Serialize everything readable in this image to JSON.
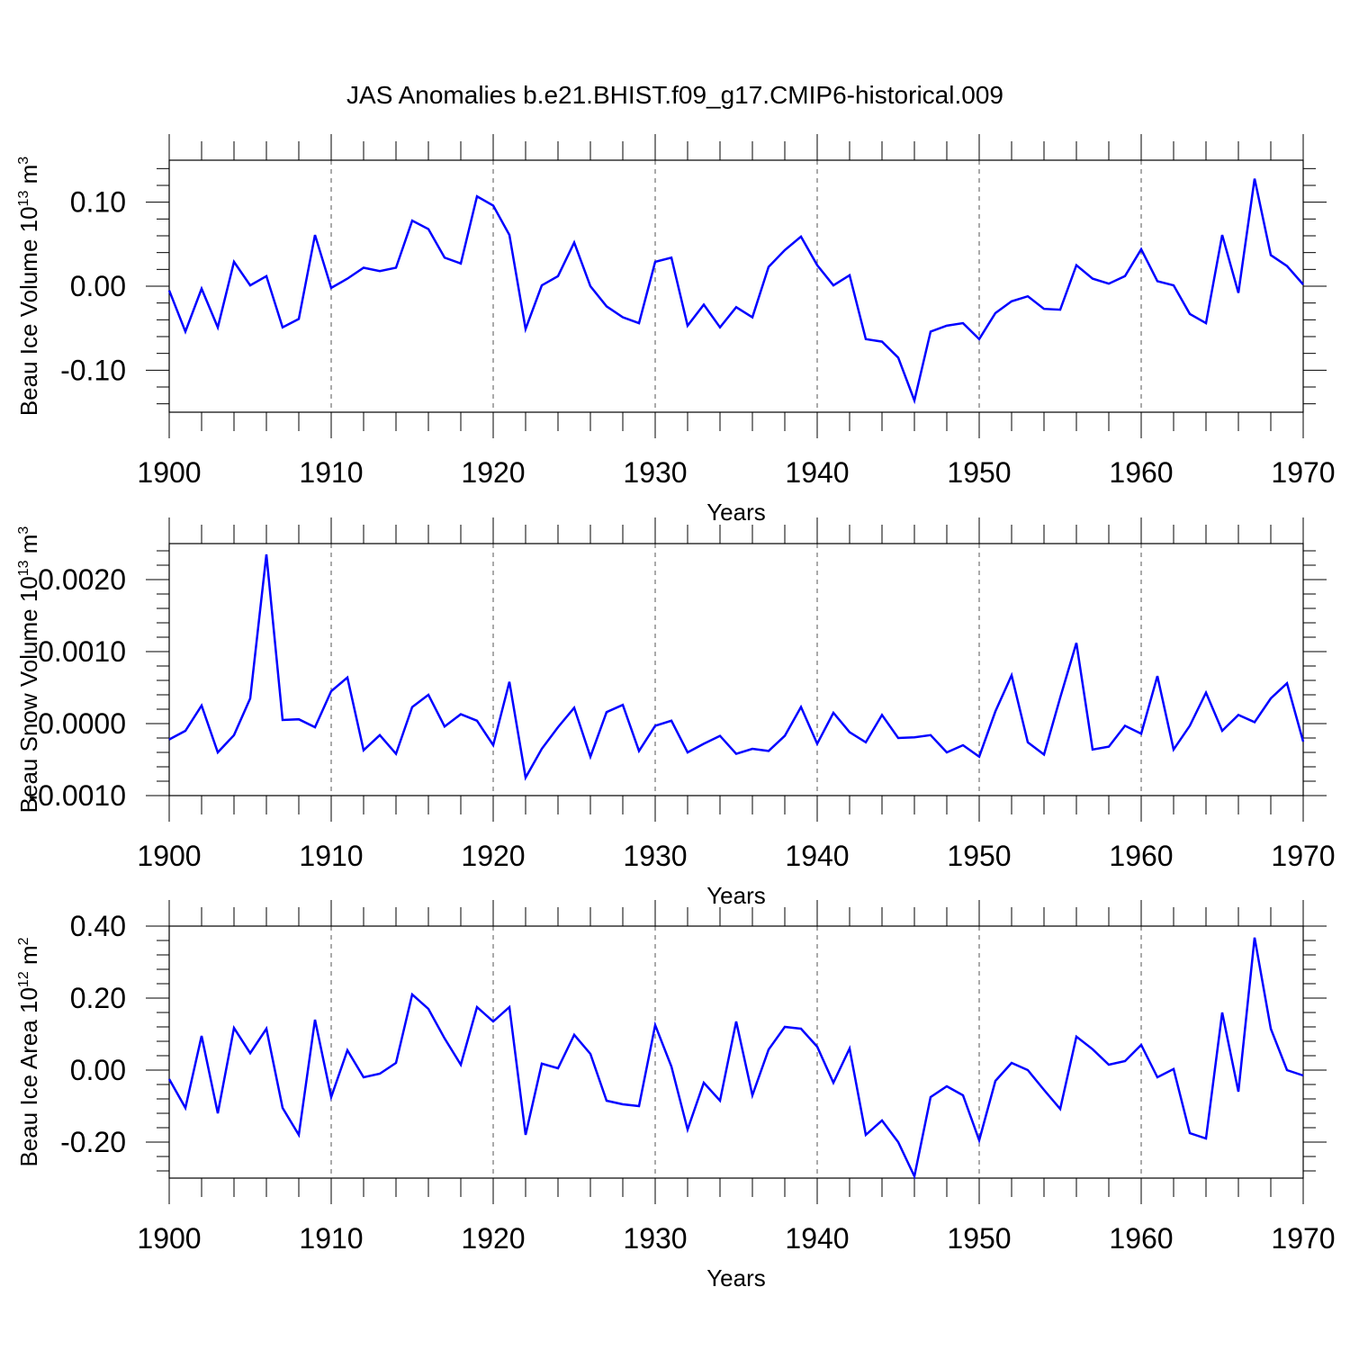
{
  "title": "JAS Anomalies b.e21.BHIST.f09_g17.CMIP6-historical.009",
  "colors": {
    "line": "#0000ff",
    "axis": "#000000",
    "grid": "#555555"
  },
  "chart_data": [
    {
      "type": "line",
      "xlabel": "Years",
      "ylabel": {
        "text": "Beau Ice Volume 10",
        "sup": "13",
        "unit": " m",
        "unit_sup": "3"
      },
      "xlim": [
        1900,
        1970
      ],
      "ylim": [
        -0.15,
        0.15
      ],
      "x_ticks": [
        "1900",
        "1910",
        "1920",
        "1930",
        "1940",
        "1950",
        "1960",
        "1970"
      ],
      "y_ticks": [
        {
          "v": 0.1,
          "label": "0.10"
        },
        {
          "v": 0.0,
          "label": "0.00"
        },
        {
          "v": -0.1,
          "label": "-0.10"
        }
      ],
      "series": [
        {
          "name": "Beau Ice Volume",
          "x_start": 1900,
          "values": [
            -0.005,
            -0.054,
            -0.003,
            -0.049,
            0.029,
            0.001,
            0.012,
            -0.049,
            -0.039,
            0.061,
            -0.002,
            0.009,
            0.022,
            0.018,
            0.022,
            0.078,
            0.068,
            0.034,
            0.027,
            0.107,
            0.096,
            0.061,
            -0.051,
            0.001,
            0.012,
            0.052,
            0.0,
            -0.024,
            -0.037,
            -0.044,
            0.029,
            0.034,
            -0.047,
            -0.022,
            -0.049,
            -0.025,
            -0.037,
            0.023,
            0.043,
            0.059,
            0.025,
            0.001,
            0.013,
            -0.063,
            -0.066,
            -0.085,
            -0.136,
            -0.054,
            -0.047,
            -0.044,
            -0.063,
            -0.032,
            -0.018,
            -0.012,
            -0.027,
            -0.028,
            0.025,
            0.009,
            0.003,
            0.012,
            0.044,
            0.006,
            0.001,
            -0.033,
            -0.044,
            0.061,
            -0.008,
            0.128,
            0.037,
            0.024,
            0.002
          ]
        }
      ]
    },
    {
      "type": "line",
      "xlabel": "Years",
      "ylabel": {
        "text": "Beau Snow Volume 10",
        "sup": "13",
        "unit": " m",
        "unit_sup": "3"
      },
      "xlim": [
        1900,
        1970
      ],
      "ylim": [
        -0.001,
        0.0025
      ],
      "x_ticks": [
        "1900",
        "1910",
        "1920",
        "1930",
        "1940",
        "1950",
        "1960",
        "1970"
      ],
      "y_ticks": [
        {
          "v": 0.002,
          "label": "0.0020"
        },
        {
          "v": 0.001,
          "label": "0.0010"
        },
        {
          "v": 0.0,
          "label": "0.0000"
        },
        {
          "v": -0.001,
          "label": "-0.0010"
        }
      ],
      "series": [
        {
          "name": "Beau Snow Volume",
          "x_start": 1900,
          "values": [
            -0.00022,
            -0.0001,
            0.00025,
            -0.0004,
            -0.00016,
            0.00035,
            0.00235,
            5e-05,
            6e-05,
            -5e-05,
            0.00045,
            0.00064,
            -0.00037,
            -0.00016,
            -0.00042,
            0.00023,
            0.0004,
            -4e-05,
            0.00013,
            4e-05,
            -0.0003,
            0.00058,
            -0.00075,
            -0.00035,
            -5e-05,
            0.00022,
            -0.00046,
            0.00016,
            0.00026,
            -0.00038,
            -3e-05,
            4e-05,
            -0.0004,
            -0.00028,
            -0.00017,
            -0.00042,
            -0.00035,
            -0.00038,
            -0.00017,
            0.00023,
            -0.00028,
            0.00015,
            -0.00012,
            -0.00026,
            0.00012,
            -0.0002,
            -0.00019,
            -0.00016,
            -0.0004,
            -0.0003,
            -0.00046,
            0.00017,
            0.00067,
            -0.00026,
            -0.00043,
            0.00036,
            0.00112,
            -0.00036,
            -0.00032,
            -3e-05,
            -0.00014,
            0.00066,
            -0.00036,
            -3e-05,
            0.00043,
            -0.0001,
            0.00012,
            2e-05,
            0.00035,
            0.00056,
            -0.00025
          ]
        }
      ]
    },
    {
      "type": "line",
      "xlabel": "Years",
      "ylabel": {
        "text": "Beau Ice Area 10",
        "sup": "12",
        "unit": " m",
        "unit_sup": "2"
      },
      "xlim": [
        1900,
        1970
      ],
      "ylim": [
        -0.3,
        0.4
      ],
      "x_ticks": [
        "1900",
        "1910",
        "1920",
        "1930",
        "1940",
        "1950",
        "1960",
        "1970"
      ],
      "y_ticks": [
        {
          "v": 0.4,
          "label": "0.40"
        },
        {
          "v": 0.2,
          "label": "0.20"
        },
        {
          "v": 0.0,
          "label": "0.00"
        },
        {
          "v": -0.2,
          "label": "-0.20"
        }
      ],
      "series": [
        {
          "name": "Beau Ice Area",
          "x_start": 1900,
          "values": [
            -0.025,
            -0.105,
            0.095,
            -0.12,
            0.117,
            0.047,
            0.115,
            -0.105,
            -0.18,
            0.14,
            -0.075,
            0.055,
            -0.02,
            -0.01,
            0.02,
            0.21,
            0.17,
            0.088,
            0.015,
            0.175,
            0.135,
            0.175,
            -0.18,
            0.018,
            0.005,
            0.098,
            0.045,
            -0.085,
            -0.095,
            -0.1,
            0.125,
            0.01,
            -0.165,
            -0.035,
            -0.085,
            0.135,
            -0.07,
            0.057,
            0.12,
            0.115,
            0.065,
            -0.035,
            0.06,
            -0.18,
            -0.14,
            -0.2,
            -0.295,
            -0.075,
            -0.045,
            -0.07,
            -0.195,
            -0.03,
            0.02,
            0.0,
            -0.055,
            -0.108,
            0.093,
            0.058,
            0.015,
            0.025,
            0.07,
            -0.02,
            0.003,
            -0.175,
            -0.19,
            0.16,
            -0.06,
            0.368,
            0.115,
            0.0,
            -0.015
          ]
        }
      ]
    }
  ]
}
